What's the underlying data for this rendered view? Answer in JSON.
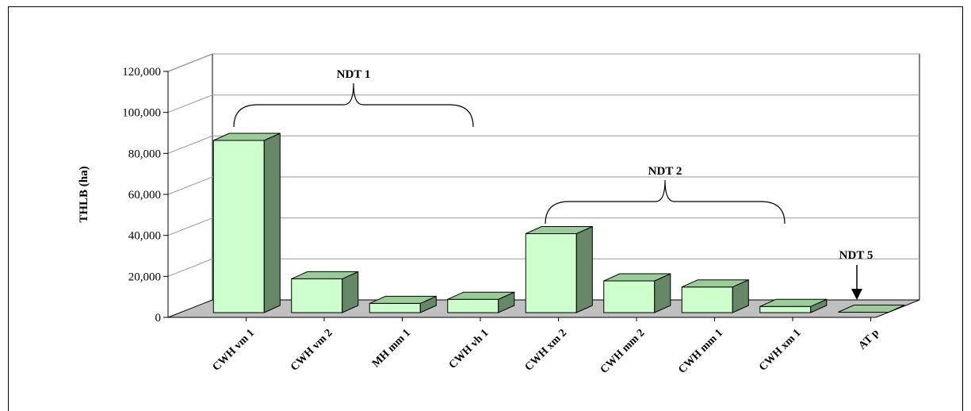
{
  "chart_data": {
    "type": "bar",
    "categories": [
      "CWH vm 1",
      "CWH vm 2",
      "MH  mm 1",
      "CWH vh 1",
      "CWH xm 2",
      "CWH mm 2",
      "CWH mm 1",
      "CWH xm 1",
      "AT     p"
    ],
    "values": [
      84000,
      16500,
      4500,
      6500,
      38500,
      15500,
      12500,
      3000,
      0
    ],
    "ylabel": "THLB (ha)",
    "ylim": [
      0,
      120000
    ],
    "yticks": [
      0,
      20000,
      40000,
      60000,
      80000,
      100000,
      120000
    ],
    "ytick_labels": [
      "0",
      "20,000",
      "40,000",
      "60,000",
      "80,000",
      "100,000",
      "120,000"
    ],
    "grid": true,
    "style": "3d-column",
    "colors": {
      "bar_front": "#ccffcc",
      "bar_top": "#99cc99",
      "bar_side": "#668866",
      "floor": "#c0c0c0",
      "grid": "#999999"
    },
    "annotations": [
      {
        "text": "NDT 1",
        "spans": [
          "CWH vm 1",
          "CWH xm 2"
        ],
        "kind": "brace"
      },
      {
        "text": "NDT 2",
        "spans": [
          "CWH xm 2",
          "AT     p"
        ],
        "kind": "brace"
      },
      {
        "text": "NDT 5",
        "target": "AT     p",
        "kind": "arrow"
      }
    ]
  }
}
